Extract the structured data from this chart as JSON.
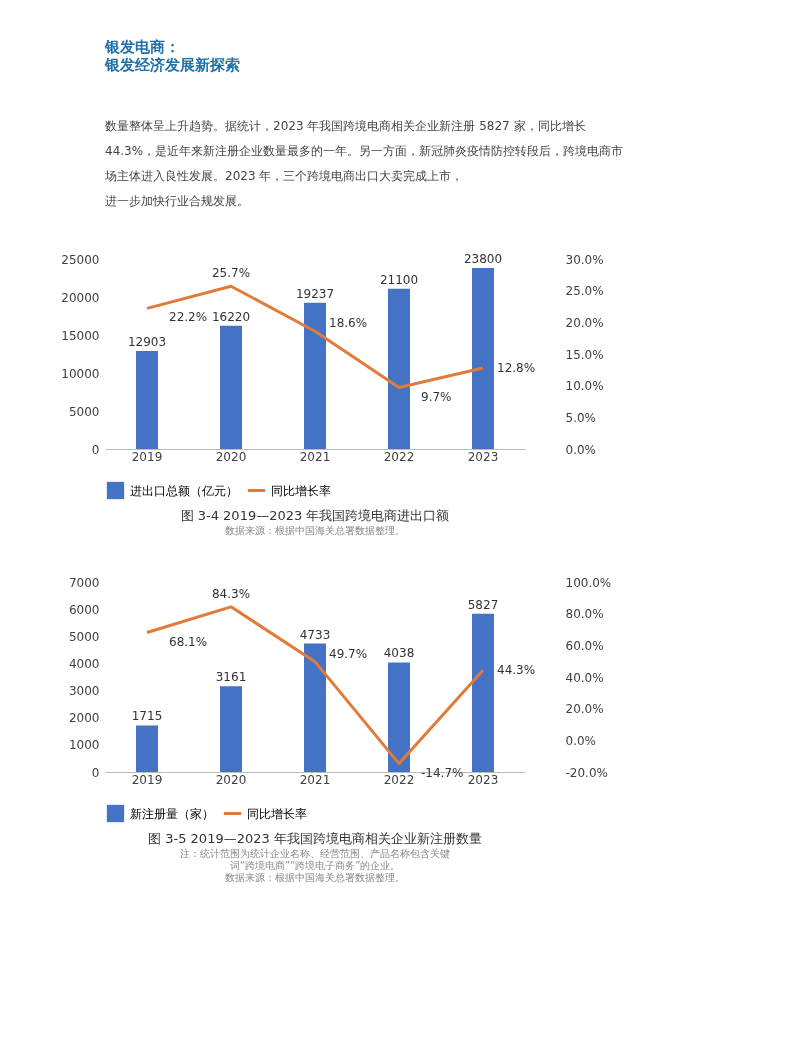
{
  "chart_data": [
    {
      "type": "other",
      "title": "银发电商：",
      "subtitle": "银发经济发展新探索",
      "annotations": [
        "数量整体呈上升趋势。据统计，2023 年我国跨境电商相关企业新注册 5827 家，同比增长",
        "44.3%，是近年来新注册企业数量最多的一年。另一方面，新冠肺炎疫情防控转段后，跨境电商市",
        "场主体进入良性发展。2023 年，三个跨境电商出口大卖完成上市，",
        "进一步加快行业合规发展。"
      ]
    },
    {
      "type": "bar",
      "title": "图 3-4 2019—2023 年我国跨境电商进出口额",
      "annotations": [
        "数据来源：根据中国海关总署数据整理。"
      ],
      "categories": [
        "2019",
        "2020",
        "2021",
        "2022",
        "2023"
      ],
      "legend": "bottom",
      "data_labels": true,
      "grid": false,
      "ylim": [
        0,
        25000
      ],
      "yticks": [
        0,
        5000,
        10000,
        15000,
        20000,
        25000
      ],
      "y2lim": [
        0,
        30
      ],
      "y2ticks": [
        {
          "value": 0,
          "label": "0.0%"
        },
        {
          "value": 5,
          "label": "5.0%"
        },
        {
          "value": 10,
          "label": "10.0%"
        },
        {
          "value": 15,
          "label": "15.0%"
        },
        {
          "value": 20,
          "label": "20.0%"
        },
        {
          "value": 25,
          "label": "25.0%"
        },
        {
          "value": 30,
          "label": "30.0%"
        }
      ],
      "series": [
        {
          "name": "进出口总额（亿元）",
          "type": "bar",
          "color": "#4472c4",
          "values": [
            12903,
            16220,
            19237,
            21100,
            23800
          ]
        },
        {
          "name": "同比增长率",
          "type": "line",
          "axis": "y2",
          "color": "#e07b39",
          "values": [
            22.2,
            25.7,
            18.6,
            9.7,
            12.8
          ],
          "value_labels": [
            "22.2%",
            "25.7%",
            "18.6%",
            "9.7%",
            "12.8%"
          ]
        }
      ]
    },
    {
      "type": "bar",
      "title": "图 3-5 2019—2023 年我国跨境电商相关企业新注册数量",
      "annotations": [
        "注：统计范围为统计企业名称、经营范围、产品名称包含关键",
        "词“跨境电商”“跨境电子商务”的企业。",
        "数据来源：根据中国海关总署数据整理。"
      ],
      "categories": [
        "2019",
        "2020",
        "2021",
        "2022",
        "2023"
      ],
      "legend": "bottom",
      "data_labels": true,
      "grid": false,
      "ylim": [
        0,
        7000
      ],
      "yticks": [
        0,
        1000,
        2000,
        3000,
        4000,
        5000,
        6000,
        7000
      ],
      "y2lim": [
        -20,
        100
      ],
      "y2ticks": [
        {
          "value": -20,
          "label": "-20.0%"
        },
        {
          "value": 0,
          "label": "0.0%"
        },
        {
          "value": 20,
          "label": "20.0%"
        },
        {
          "value": 40,
          "label": "40.0%"
        },
        {
          "value": 60,
          "label": "60.0%"
        },
        {
          "value": 80,
          "label": "80.0%"
        },
        {
          "value": 100,
          "label": "100.0%"
        }
      ],
      "series": [
        {
          "name": "新注册量（家）",
          "type": "bar",
          "color": "#4472c4",
          "values": [
            1715,
            3161,
            4733,
            4038,
            5827
          ]
        },
        {
          "name": "同比增长率",
          "type": "line",
          "axis": "y2",
          "color": "#e07b39",
          "values": [
            68.1,
            84.3,
            49.7,
            -14.7,
            44.3
          ],
          "value_labels": [
            "68.1%",
            "84.3%",
            "49.7%",
            "-14.7%",
            "44.3%"
          ]
        }
      ]
    }
  ]
}
